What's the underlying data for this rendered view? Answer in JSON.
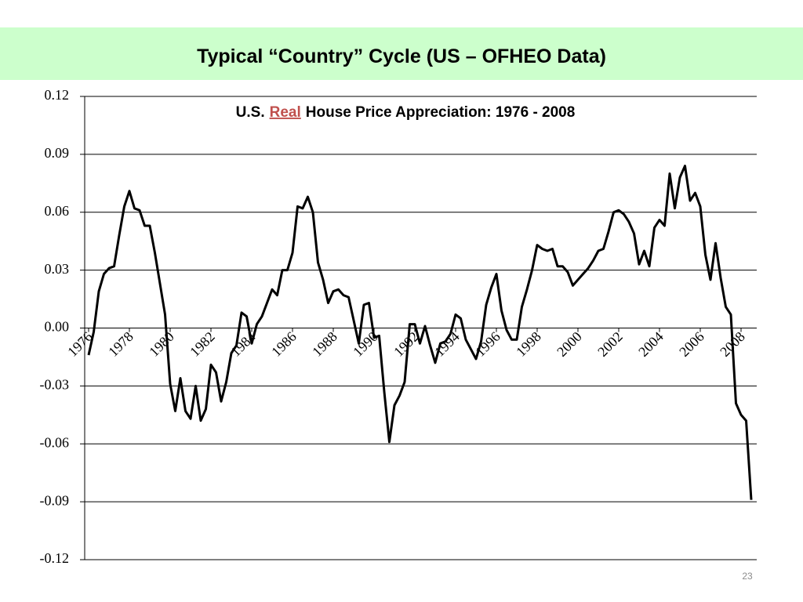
{
  "slide": {
    "heading": "Typical “Country” Cycle (US – OFHEO Data)",
    "page_number": "23"
  },
  "chart_data": {
    "type": "line",
    "title": [
      "U.S.",
      "Real",
      "House Price Appreciation:  1976 - 2008"
    ],
    "categories": [
      "1976",
      null,
      null,
      null,
      null,
      null,
      null,
      null,
      "1978",
      null,
      null,
      null,
      null,
      null,
      null,
      null,
      "1980",
      null,
      null,
      null,
      null,
      null,
      null,
      null,
      "1982",
      null,
      null,
      null,
      null,
      null,
      null,
      null,
      "1984",
      null,
      null,
      null,
      null,
      null,
      null,
      null,
      "1986",
      null,
      null,
      null,
      null,
      null,
      null,
      null,
      "1988",
      null,
      null,
      null,
      null,
      null,
      null,
      null,
      "1990",
      null,
      null,
      null,
      null,
      null,
      null,
      null,
      "1992",
      null,
      null,
      null,
      null,
      null,
      null,
      null,
      "1994",
      null,
      null,
      null,
      null,
      null,
      null,
      null,
      "1996",
      null,
      null,
      null,
      null,
      null,
      null,
      null,
      "1998",
      null,
      null,
      null,
      null,
      null,
      null,
      null,
      "2000",
      null,
      null,
      null,
      null,
      null,
      null,
      null,
      "2002",
      null,
      null,
      null,
      null,
      null,
      null,
      null,
      "2004",
      null,
      null,
      null,
      null,
      null,
      null,
      null,
      "2006",
      null,
      null,
      null,
      null,
      null,
      null,
      null,
      "2008",
      null,
      null
    ],
    "values": [
      -0.014,
      -0.002,
      0.019,
      0.028,
      0.031,
      0.032,
      0.048,
      0.063,
      0.071,
      0.062,
      0.061,
      0.053,
      0.053,
      0.039,
      0.023,
      0.007,
      -0.029,
      -0.043,
      -0.026,
      -0.043,
      -0.047,
      -0.03,
      -0.048,
      -0.042,
      -0.019,
      -0.023,
      -0.038,
      -0.028,
      -0.013,
      -0.009,
      0.008,
      0.006,
      -0.008,
      0.002,
      0.006,
      0.013,
      0.02,
      0.017,
      0.03,
      0.03,
      0.039,
      0.063,
      0.062,
      0.068,
      0.06,
      0.034,
      0.025,
      0.013,
      0.019,
      0.02,
      0.017,
      0.016,
      0.004,
      -0.008,
      0.012,
      0.013,
      -0.005,
      -0.004,
      -0.033,
      -0.059,
      -0.04,
      -0.035,
      -0.028,
      0.002,
      0.002,
      -0.008,
      0.001,
      -0.009,
      -0.018,
      -0.008,
      -0.007,
      -0.003,
      0.007,
      0.005,
      -0.006,
      -0.011,
      -0.016,
      -0.007,
      0.012,
      0.021,
      0.028,
      0.009,
      -0.001,
      -0.006,
      -0.006,
      0.011,
      0.02,
      0.03,
      0.043,
      0.041,
      0.04,
      0.041,
      0.032,
      0.032,
      0.029,
      0.022,
      0.025,
      0.028,
      0.031,
      0.035,
      0.04,
      0.041,
      0.05,
      0.06,
      0.061,
      0.059,
      0.055,
      0.049,
      0.033,
      0.04,
      0.032,
      0.052,
      0.056,
      0.053,
      0.08,
      0.062,
      0.078,
      0.084,
      0.066,
      0.07,
      0.063,
      0.038,
      0.025,
      0.044,
      0.026,
      0.011,
      0.007,
      -0.039,
      -0.045,
      -0.048,
      -0.089
    ],
    "color": "#000000",
    "title_highlight_color": "#c0504d",
    "ylim": [
      -0.12,
      0.12
    ],
    "yticks": [
      -0.12,
      -0.09,
      -0.06,
      -0.03,
      {
        "value": 0,
        "label": "0.00"
      },
      0.03,
      0.06,
      0.09,
      0.12
    ],
    "grid": true
  }
}
